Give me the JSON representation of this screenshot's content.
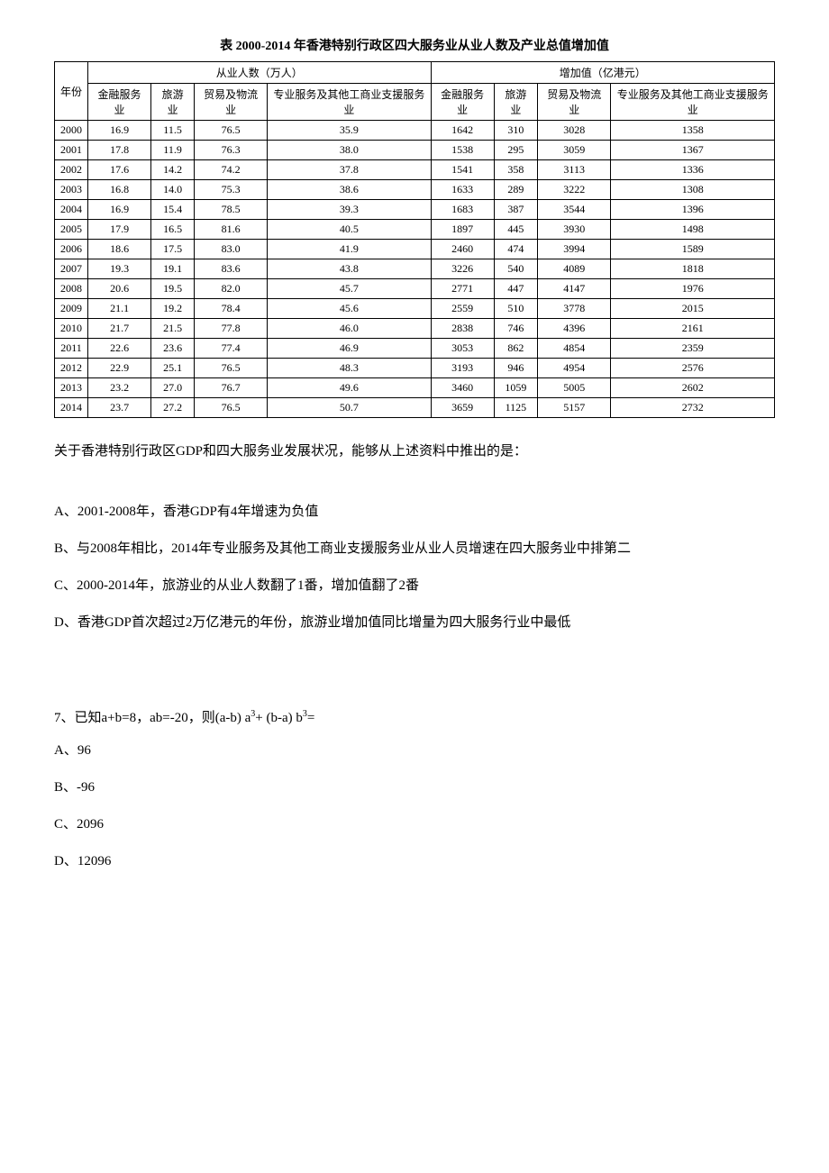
{
  "table": {
    "title": "表 2000-2014 年香港特别行政区四大服务业从业人数及产业总值增加值",
    "col_year": "年份",
    "group1": "从业人数（万人）",
    "group2": "增加值（亿港元）",
    "sub_cols": [
      "金融服务业",
      "旅游业",
      "贸易及物流业",
      "专业服务及其他工商业支援服务业",
      "金融服务业",
      "旅游业",
      "贸易及物流业",
      "专业服务及其他工商业支援服务业"
    ],
    "rows": [
      [
        "2000",
        "16.9",
        "11.5",
        "76.5",
        "35.9",
        "1642",
        "310",
        "3028",
        "1358"
      ],
      [
        "2001",
        "17.8",
        "11.9",
        "76.3",
        "38.0",
        "1538",
        "295",
        "3059",
        "1367"
      ],
      [
        "2002",
        "17.6",
        "14.2",
        "74.2",
        "37.8",
        "1541",
        "358",
        "3113",
        "1336"
      ],
      [
        "2003",
        "16.8",
        "14.0",
        "75.3",
        "38.6",
        "1633",
        "289",
        "3222",
        "1308"
      ],
      [
        "2004",
        "16.9",
        "15.4",
        "78.5",
        "39.3",
        "1683",
        "387",
        "3544",
        "1396"
      ],
      [
        "2005",
        "17.9",
        "16.5",
        "81.6",
        "40.5",
        "1897",
        "445",
        "3930",
        "1498"
      ],
      [
        "2006",
        "18.6",
        "17.5",
        "83.0",
        "41.9",
        "2460",
        "474",
        "3994",
        "1589"
      ],
      [
        "2007",
        "19.3",
        "19.1",
        "83.6",
        "43.8",
        "3226",
        "540",
        "4089",
        "1818"
      ],
      [
        "2008",
        "20.6",
        "19.5",
        "82.0",
        "45.7",
        "2771",
        "447",
        "4147",
        "1976"
      ],
      [
        "2009",
        "21.1",
        "19.2",
        "78.4",
        "45.6",
        "2559",
        "510",
        "3778",
        "2015"
      ],
      [
        "2010",
        "21.7",
        "21.5",
        "77.8",
        "46.0",
        "2838",
        "746",
        "4396",
        "2161"
      ],
      [
        "2011",
        "22.6",
        "23.6",
        "77.4",
        "46.9",
        "3053",
        "862",
        "4854",
        "2359"
      ],
      [
        "2012",
        "22.9",
        "25.1",
        "76.5",
        "48.3",
        "3193",
        "946",
        "4954",
        "2576"
      ],
      [
        "2013",
        "23.2",
        "27.0",
        "76.7",
        "49.6",
        "3460",
        "1059",
        "5005",
        "2602"
      ],
      [
        "2014",
        "23.7",
        "27.2",
        "76.5",
        "50.7",
        "3659",
        "1125",
        "5157",
        "2732"
      ]
    ]
  },
  "question6": {
    "stem": "关于香港特别行政区GDP和四大服务业发展状况，能够从上述资料中推出的是：",
    "optA": "A、2001-2008年，香港GDP有4年增速为负值",
    "optB": "B、与2008年相比，2014年专业服务及其他工商业支援服务业从业人员增速在四大服务业中排第二",
    "optC": "C、2000-2014年，旅游业的从业人数翻了1番，增加值翻了2番",
    "optD": "D、香港GDP首次超过2万亿港元的年份，旅游业增加值同比增量为四大服务行业中最低"
  },
  "question7": {
    "prefix": "7、已知a+b=8，ab=-20，则",
    "expr_a": "(a-b)",
    "expr_b": "a",
    "expr_plus": "+",
    "expr_c": "(b-a)",
    "expr_d": "b",
    "expr_eq": "=",
    "optA": "A、96",
    "optB": "B、-96",
    "optC": "C、2096",
    "optD": "D、12096"
  }
}
